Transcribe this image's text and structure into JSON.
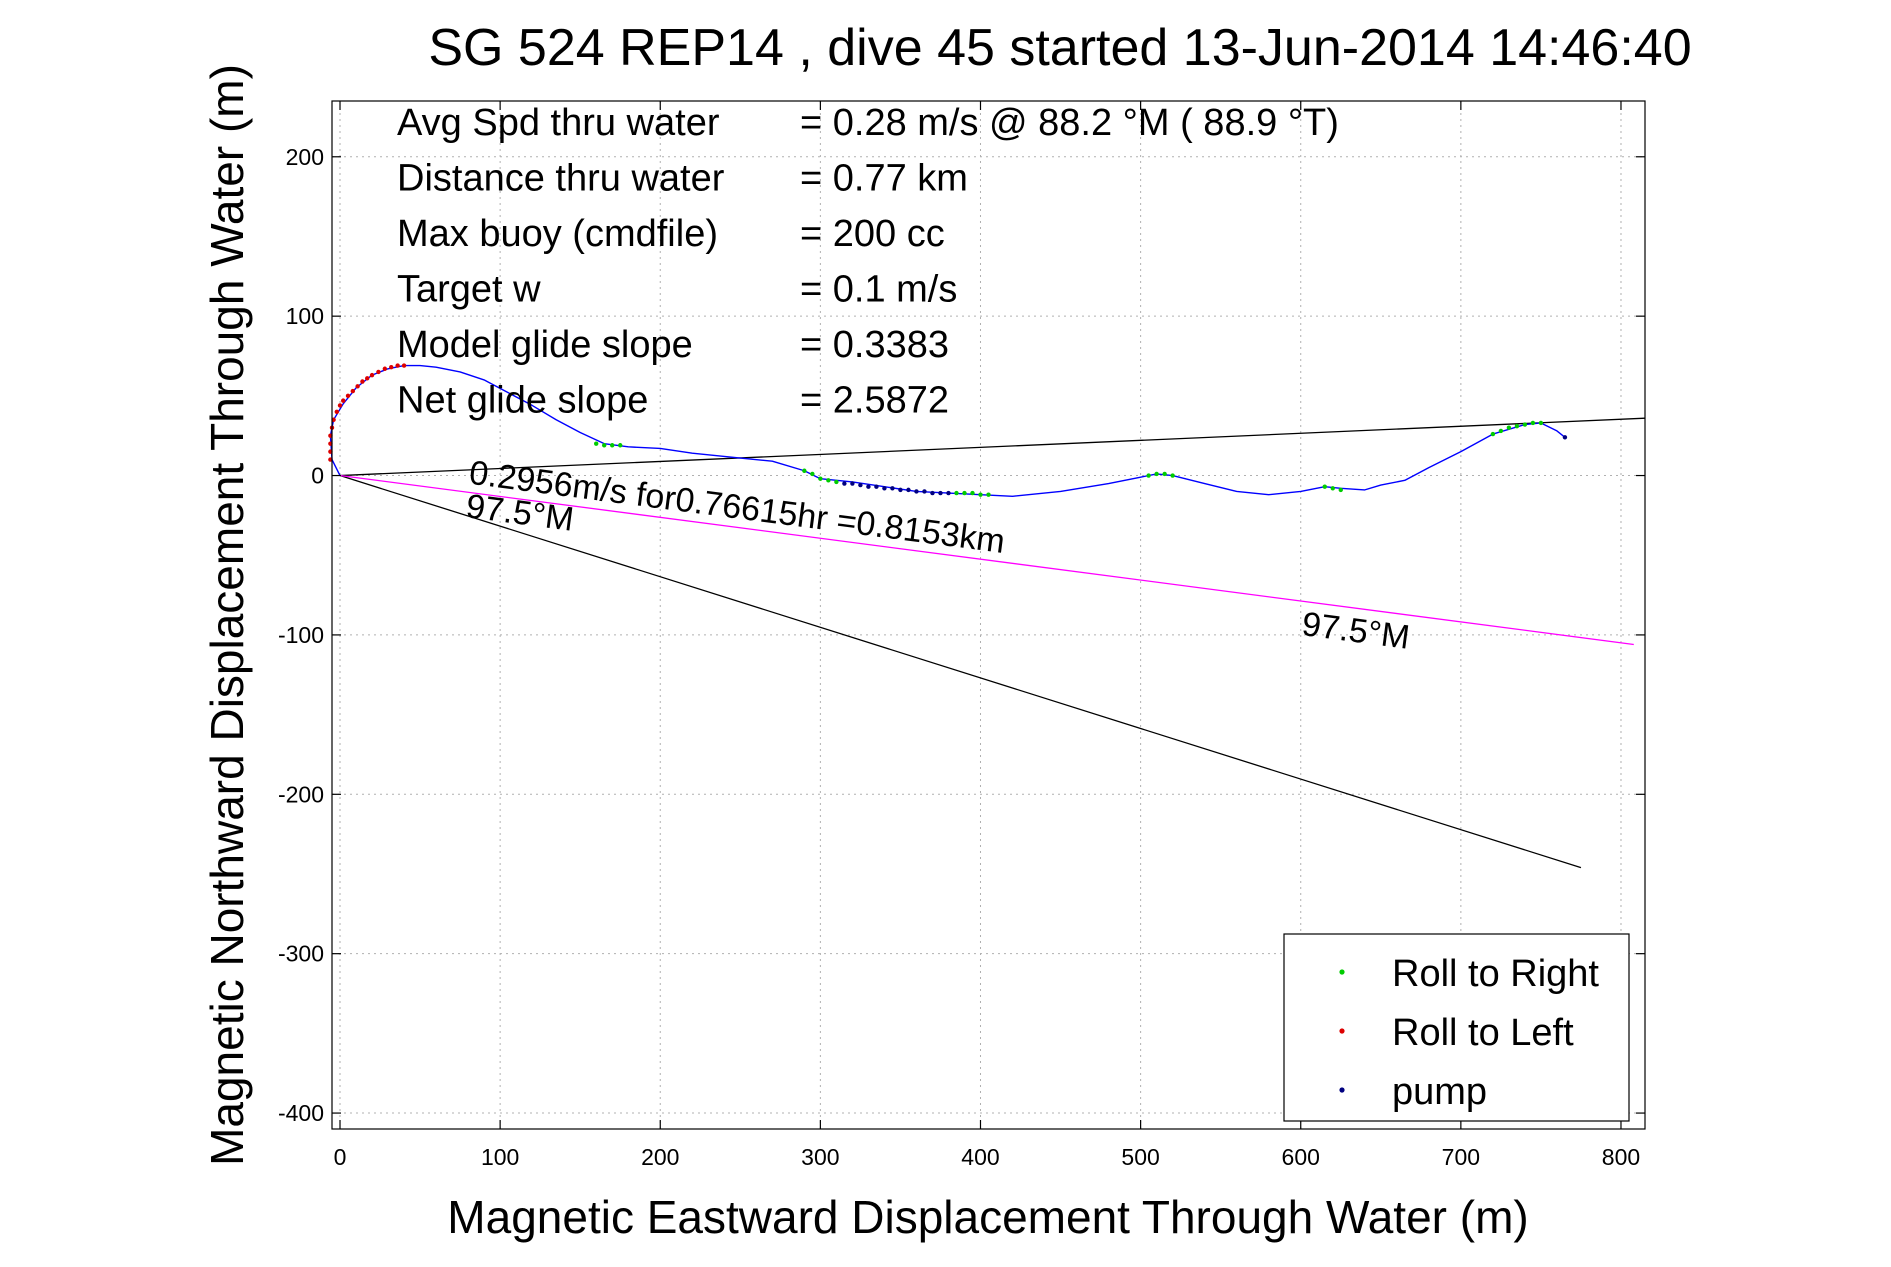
{
  "chart_data": {
    "type": "scatter",
    "title": "SG 524   REP14  , dive 45 started 13-Jun-2014 14:46:40",
    "xlabel": "Magnetic Eastward Displacement Through Water (m)",
    "ylabel": "Magnetic Northward Displacement Through Water (m)",
    "xlim": [
      -5,
      815
    ],
    "ylim": [
      -410,
      235
    ],
    "xticks": [
      0,
      100,
      200,
      300,
      400,
      500,
      600,
      700,
      800
    ],
    "yticks": [
      -400,
      -300,
      -200,
      -100,
      0,
      100,
      200
    ],
    "grid": true,
    "legend_position": "bottom-right",
    "info_lines": [
      {
        "label": "Avg Spd thru water",
        "value": "=  0.28 m/s @  88.2 °M ( 88.9 °T)"
      },
      {
        "label": "Distance thru water",
        "value": "=  0.77 km"
      },
      {
        "label": "Max buoy (cmdfile)",
        "value": "= 200 cc"
      },
      {
        "label": "Target w",
        "value": "= 0.1 m/s"
      },
      {
        "label": "Model glide slope",
        "value": "= 0.3383"
      },
      {
        "label": "Net glide slope",
        "value": "= 2.5872"
      }
    ],
    "track": {
      "color": "#0000ff",
      "points": [
        [
          0,
          0
        ],
        [
          -5,
          10
        ],
        [
          -6,
          25
        ],
        [
          -4,
          35
        ],
        [
          2,
          45
        ],
        [
          10,
          55
        ],
        [
          20,
          63
        ],
        [
          30,
          67
        ],
        [
          40,
          69
        ],
        [
          50,
          69
        ],
        [
          60,
          68
        ],
        [
          75,
          65
        ],
        [
          90,
          60
        ],
        [
          105,
          52
        ],
        [
          120,
          44
        ],
        [
          135,
          35
        ],
        [
          150,
          27
        ],
        [
          165,
          20
        ],
        [
          180,
          18
        ],
        [
          200,
          17
        ],
        [
          220,
          14
        ],
        [
          250,
          11
        ],
        [
          270,
          9
        ],
        [
          290,
          3
        ],
        [
          300,
          -2
        ],
        [
          320,
          -4
        ],
        [
          340,
          -7
        ],
        [
          360,
          -10
        ],
        [
          380,
          -11
        ],
        [
          400,
          -12
        ],
        [
          420,
          -13
        ],
        [
          450,
          -10
        ],
        [
          480,
          -5
        ],
        [
          500,
          -1
        ],
        [
          510,
          1
        ],
        [
          520,
          0
        ],
        [
          540,
          -5
        ],
        [
          560,
          -10
        ],
        [
          580,
          -12
        ],
        [
          600,
          -10
        ],
        [
          615,
          -7
        ],
        [
          625,
          -8
        ],
        [
          640,
          -9
        ],
        [
          650,
          -6
        ],
        [
          665,
          -3
        ],
        [
          680,
          5
        ],
        [
          700,
          15
        ],
        [
          720,
          26
        ],
        [
          740,
          32
        ],
        [
          750,
          33
        ],
        [
          760,
          28
        ],
        [
          765,
          24
        ]
      ]
    },
    "reference_lines": [
      {
        "name": "",
        "color": "#000000",
        "points": [
          [
            0,
            0
          ],
          [
            815,
            36
          ]
        ]
      },
      {
        "name": "",
        "color": "#000000",
        "points": [
          [
            0,
            0
          ],
          [
            775,
            -246
          ]
        ]
      },
      {
        "name": "",
        "color": "#ff00ff",
        "points": [
          [
            0,
            0
          ],
          [
            808,
            -106
          ]
        ]
      }
    ],
    "series": [
      {
        "name": "Roll to Right",
        "color": "#00cc00",
        "points": [
          [
            160,
            20
          ],
          [
            165,
            19
          ],
          [
            170,
            19
          ],
          [
            175,
            19
          ],
          [
            290,
            3
          ],
          [
            295,
            1
          ],
          [
            300,
            -2
          ],
          [
            305,
            -3
          ],
          [
            310,
            -4
          ],
          [
            385,
            -11
          ],
          [
            390,
            -11
          ],
          [
            395,
            -11
          ],
          [
            400,
            -12
          ],
          [
            405,
            -12
          ],
          [
            505,
            0
          ],
          [
            510,
            1
          ],
          [
            515,
            1
          ],
          [
            520,
            0
          ],
          [
            615,
            -7
          ],
          [
            620,
            -8
          ],
          [
            625,
            -9
          ],
          [
            720,
            26
          ],
          [
            725,
            28
          ],
          [
            730,
            30
          ],
          [
            735,
            31
          ],
          [
            740,
            32
          ],
          [
            745,
            33
          ],
          [
            750,
            33
          ]
        ]
      },
      {
        "name": "Roll to Left",
        "color": "#dd0000",
        "points": [
          [
            -6,
            10
          ],
          [
            -6,
            15
          ],
          [
            -6,
            20
          ],
          [
            -6,
            25
          ],
          [
            -5,
            30
          ],
          [
            -4,
            35
          ],
          [
            -2,
            40
          ],
          [
            0,
            44
          ],
          [
            2,
            47
          ],
          [
            5,
            50
          ],
          [
            8,
            53
          ],
          [
            11,
            56
          ],
          [
            14,
            59
          ],
          [
            17,
            61
          ],
          [
            20,
            63
          ],
          [
            24,
            65
          ],
          [
            28,
            67
          ],
          [
            32,
            68
          ],
          [
            36,
            69
          ],
          [
            40,
            69
          ]
        ]
      },
      {
        "name": "pump",
        "color": "#000080",
        "points": [
          [
            315,
            -5
          ],
          [
            320,
            -5
          ],
          [
            325,
            -6
          ],
          [
            330,
            -7
          ],
          [
            335,
            -7
          ],
          [
            340,
            -8
          ],
          [
            345,
            -8
          ],
          [
            350,
            -9
          ],
          [
            355,
            -9
          ],
          [
            360,
            -10
          ],
          [
            365,
            -10
          ],
          [
            370,
            -11
          ],
          [
            375,
            -11
          ],
          [
            380,
            -11
          ],
          [
            765,
            24
          ]
        ]
      }
    ],
    "annotations": [
      {
        "text": "0.2956m/s for0.76615hr =0.8153km",
        "x": 80,
        "y": -5,
        "angle": 7.4
      },
      {
        "text": "97.5°M",
        "x": 78,
        "y": -26,
        "angle": 7.4
      },
      {
        "text": "97.5°M",
        "x": 600,
        "y": -100,
        "angle": 7.4
      }
    ]
  }
}
